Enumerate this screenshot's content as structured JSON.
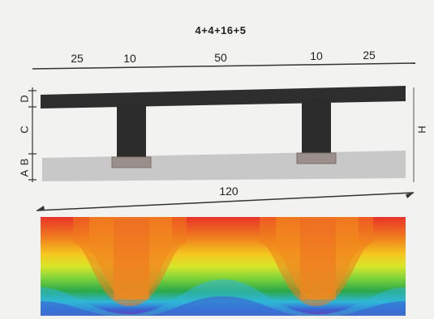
{
  "profile": {
    "formula": "4+4+16+5",
    "top_dimensions": [
      "25",
      "10",
      "50",
      "10",
      "25"
    ],
    "total_width": "120",
    "layer_labels": [
      "D",
      "C",
      "B",
      "A"
    ],
    "height_label": "H"
  },
  "colors": {
    "flange": "#2e2e2e",
    "web": "#2c2c2c",
    "base": "#c8c8c8",
    "thermal": [
      "#e8332a",
      "#f07a1e",
      "#f4c81f",
      "#e8e82a",
      "#7fd43a",
      "#2ba84a",
      "#2fb7d9",
      "#3a5fd4",
      "#6a3fb0"
    ]
  }
}
